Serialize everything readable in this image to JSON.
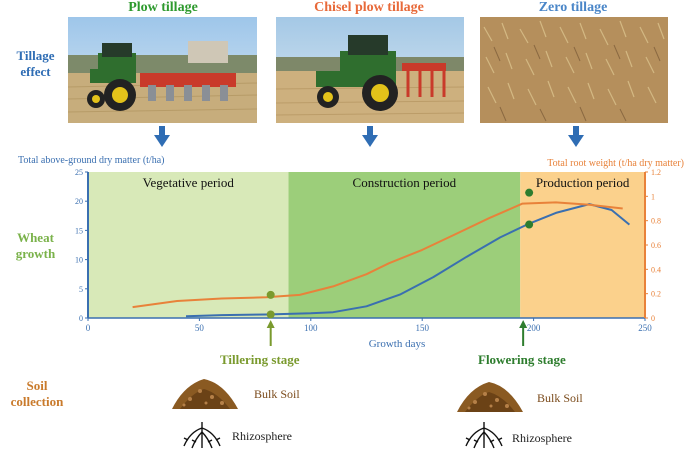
{
  "side_labels": {
    "tillage_effect": "Tillage effect",
    "wheat_growth": "Wheat growth",
    "soil_collection": "Soil collection"
  },
  "treatments": [
    {
      "name": "Plow tillage",
      "color": "#2e9a2e"
    },
    {
      "name": "Chisel plow tillage",
      "color": "#e86a3a"
    },
    {
      "name": "Zero tillage",
      "color": "#4a86c8"
    }
  ],
  "colors": {
    "side_label_blue": "#2f6db4",
    "side_label_green": "#7ab24a",
    "side_label_brown": "#c97a2b",
    "arrow_blue": "#2f6db4",
    "left_axis": "#3a6fb0",
    "right_axis": "#e8823a",
    "vegetative_bg": "#d8e9b8",
    "construction_bg": "#9cce7a",
    "production_bg": "#fbd18c",
    "stage_tillering": "#7a9a2e",
    "stage_flowering": "#2e7d2e",
    "soil_brown": "#7a4a1a"
  },
  "chart_data": {
    "type": "line",
    "xlabel": "Growth days",
    "ylabel_left": "Total above-ground dry matter (t/ha)",
    "ylabel_right": "Total root weight (t/ha dry matter)",
    "xlim": [
      0,
      250
    ],
    "ylim_left": [
      0,
      25
    ],
    "ylim_right": [
      0,
      1.2
    ],
    "x_ticks": [
      "0",
      "50",
      "100",
      "150",
      "200",
      "250"
    ],
    "y_left_ticks": [
      "0",
      "5",
      "10",
      "15",
      "20",
      "25"
    ],
    "y_right_ticks": [
      "0",
      "0.2",
      "0.4",
      "0.6",
      "0.8",
      "1",
      "1.2"
    ],
    "periods": [
      {
        "name": "Vegetative period",
        "start": 0,
        "end": 90
      },
      {
        "name": "Construction period",
        "start": 90,
        "end": 194
      },
      {
        "name": "Production period",
        "start": 194,
        "end": 250
      }
    ],
    "series": [
      {
        "axis": "left",
        "color": "#3a6fb0",
        "points": [
          [
            44,
            0.3
          ],
          [
            60,
            0.5
          ],
          [
            80,
            0.6
          ],
          [
            100,
            0.8
          ],
          [
            110,
            1.0
          ],
          [
            125,
            2.0
          ],
          [
            140,
            4.0
          ],
          [
            155,
            7.0
          ],
          [
            170,
            10.5
          ],
          [
            185,
            13.8
          ],
          [
            197,
            16.0
          ],
          [
            210,
            18.0
          ],
          [
            225,
            19.5
          ],
          [
            235,
            18.5
          ],
          [
            243,
            16.0
          ]
        ]
      },
      {
        "axis": "right",
        "color": "#e8823a",
        "points": [
          [
            20,
            0.09
          ],
          [
            40,
            0.14
          ],
          [
            60,
            0.16
          ],
          [
            80,
            0.17
          ],
          [
            95,
            0.19
          ],
          [
            110,
            0.26
          ],
          [
            125,
            0.36
          ],
          [
            135,
            0.45
          ],
          [
            150,
            0.56
          ],
          [
            165,
            0.69
          ],
          [
            180,
            0.82
          ],
          [
            195,
            0.94
          ],
          [
            210,
            0.95
          ],
          [
            225,
            0.93
          ],
          [
            240,
            0.9
          ]
        ]
      }
    ],
    "markers": [
      {
        "x": 82,
        "y_right": 0.19,
        "y_left": 0.6
      },
      {
        "x": 198,
        "y_right": 1.03,
        "y_left": 16.0
      }
    ]
  },
  "stages": {
    "tillering": "Tillering stage",
    "flowering": "Flowering stage"
  },
  "soil": {
    "bulk_soil": "Bulk Soil",
    "rhizosphere": "Rhizosphere"
  }
}
